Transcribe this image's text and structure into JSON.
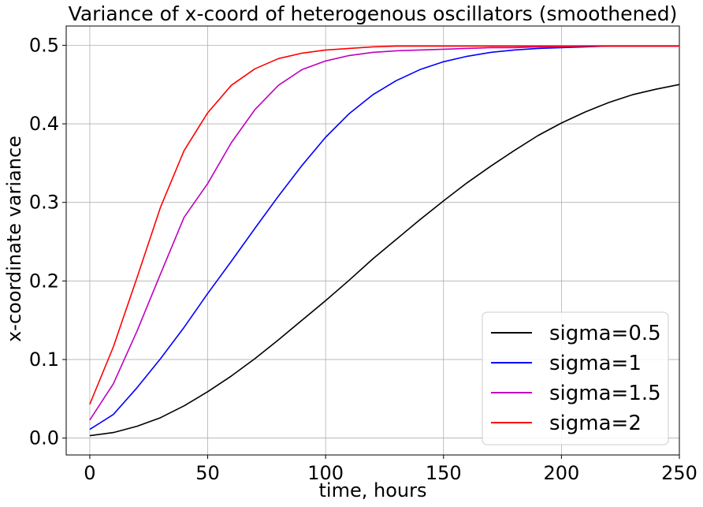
{
  "chart_data": {
    "type": "line",
    "title": "Variance of x-coord of heterogenous oscillators (smoothened)",
    "xlabel": "time, hours",
    "ylabel": "x-coordinate variance",
    "xlim": [
      -10,
      250
    ],
    "ylim": [
      -0.0215,
      0.5245
    ],
    "xticks": [
      0,
      50,
      100,
      150,
      200,
      250
    ],
    "yticks": [
      0.0,
      0.1,
      0.2,
      0.3,
      0.4,
      0.5
    ],
    "xtick_labels": [
      "0",
      "50",
      "100",
      "150",
      "200",
      "250"
    ],
    "ytick_labels": [
      "0.0",
      "0.1",
      "0.2",
      "0.3",
      "0.4",
      "0.5"
    ],
    "grid": true,
    "legend_position": "lower-right",
    "series": [
      {
        "name": "sigma=0.5",
        "color": "#000000",
        "x": [
          0,
          10,
          20,
          30,
          40,
          50,
          60,
          70,
          80,
          90,
          100,
          110,
          120,
          130,
          140,
          150,
          160,
          170,
          180,
          190,
          200,
          210,
          220,
          230,
          240,
          250
        ],
        "y": [
          0.003,
          0.007,
          0.015,
          0.026,
          0.041,
          0.059,
          0.079,
          0.101,
          0.125,
          0.15,
          0.175,
          0.201,
          0.228,
          0.253,
          0.278,
          0.302,
          0.325,
          0.346,
          0.366,
          0.385,
          0.401,
          0.415,
          0.427,
          0.437,
          0.444,
          0.45
        ]
      },
      {
        "name": "sigma=1",
        "color": "#0000ff",
        "x": [
          0,
          10,
          20,
          30,
          40,
          50,
          60,
          70,
          80,
          90,
          100,
          110,
          120,
          130,
          140,
          150,
          160,
          170,
          180,
          190,
          200,
          210,
          220,
          230,
          240,
          250
        ],
        "y": [
          0.011,
          0.03,
          0.064,
          0.101,
          0.141,
          0.184,
          0.225,
          0.267,
          0.308,
          0.347,
          0.383,
          0.413,
          0.437,
          0.455,
          0.469,
          0.479,
          0.486,
          0.491,
          0.494,
          0.496,
          0.497,
          0.498,
          0.499,
          0.499,
          0.499,
          0.499
        ]
      },
      {
        "name": "sigma=1.5",
        "color": "#bf00bf",
        "x": [
          0,
          10,
          20,
          30,
          40,
          50,
          60,
          70,
          80,
          90,
          100,
          110,
          120,
          130,
          140,
          150,
          160,
          170,
          180,
          190,
          200,
          210,
          220,
          230,
          240,
          250
        ],
        "y": [
          0.023,
          0.069,
          0.136,
          0.209,
          0.281,
          0.324,
          0.376,
          0.418,
          0.449,
          0.469,
          0.48,
          0.487,
          0.491,
          0.493,
          0.494,
          0.495,
          0.496,
          0.497,
          0.497,
          0.498,
          0.498,
          0.499,
          0.499,
          0.499,
          0.499,
          0.499
        ]
      },
      {
        "name": "sigma=2",
        "color": "#ff0000",
        "x": [
          0,
          10,
          20,
          30,
          40,
          50,
          60,
          70,
          80,
          90,
          100,
          110,
          120,
          130,
          140,
          150,
          160,
          170,
          180,
          190,
          200,
          210,
          220,
          230,
          240,
          250
        ],
        "y": [
          0.043,
          0.116,
          0.204,
          0.294,
          0.366,
          0.414,
          0.449,
          0.47,
          0.483,
          0.49,
          0.494,
          0.496,
          0.498,
          0.499,
          0.499,
          0.499,
          0.499,
          0.499,
          0.499,
          0.499,
          0.499,
          0.499,
          0.499,
          0.499,
          0.499,
          0.499
        ]
      }
    ]
  }
}
